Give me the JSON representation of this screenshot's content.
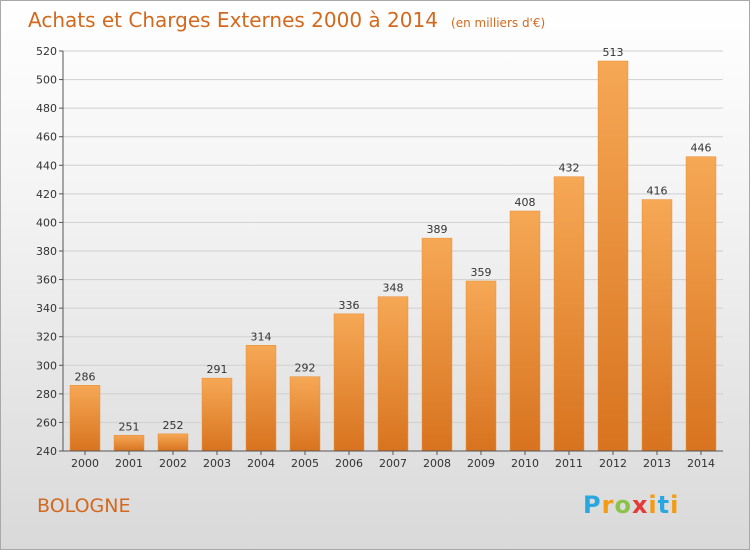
{
  "title": "Achats et Charges Externes 2000 à 2014",
  "unit": "(en milliers d'€)",
  "place": "BOLOGNE",
  "logo": {
    "p": "P",
    "r": "r",
    "o": "o",
    "x": "x",
    "i": "i",
    "t": "t",
    "i2": "i"
  },
  "colors": {
    "bar_top": "#f6a855",
    "bar_bottom": "#d8731f",
    "text": "#d2691e"
  },
  "chart_data": {
    "type": "bar",
    "title": "Achats et Charges Externes 2000 à 2014",
    "subtitle": "(en milliers d'€)",
    "categories": [
      "2000",
      "2001",
      "2002",
      "2003",
      "2004",
      "2005",
      "2006",
      "2007",
      "2008",
      "2009",
      "2010",
      "2011",
      "2012",
      "2013",
      "2014"
    ],
    "values": [
      286,
      251,
      252,
      291,
      314,
      292,
      336,
      348,
      389,
      359,
      408,
      432,
      513,
      416,
      446
    ],
    "ylim": [
      240,
      520
    ],
    "yticks": [
      240,
      260,
      280,
      300,
      320,
      340,
      360,
      380,
      400,
      420,
      440,
      460,
      480,
      500,
      520
    ],
    "grid": true,
    "legend": "none"
  }
}
